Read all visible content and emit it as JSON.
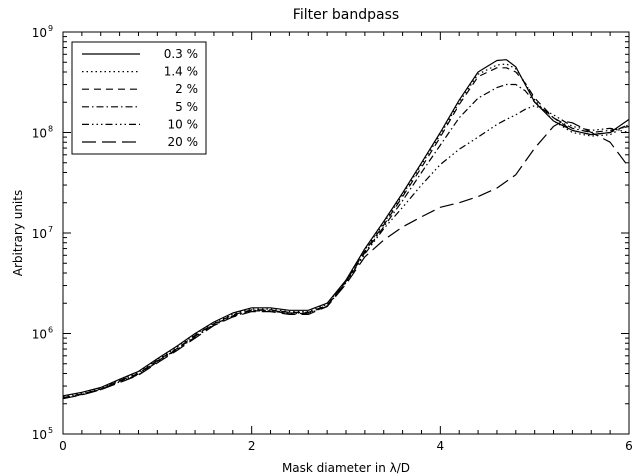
{
  "chart_data": {
    "type": "line",
    "title": "Filter bandpass",
    "xlabel": "Mask diameter in λ/D",
    "ylabel": "Arbitrary units",
    "xlim": [
      0,
      6
    ],
    "ylim": [
      100000,
      1000000000
    ],
    "yscale": "log",
    "grid": false,
    "legend_position": "top-left",
    "x_ticks": [
      0,
      2,
      4,
      6
    ],
    "x_tick_labels": [
      "0",
      "2",
      "4",
      "6"
    ],
    "y_ticks": [
      100000,
      1000000,
      10000000,
      100000000,
      1000000000
    ],
    "y_tick_labels": [
      {
        "base": "10",
        "exp": "5"
      },
      {
        "base": "10",
        "exp": "6"
      },
      {
        "base": "10",
        "exp": "7"
      },
      {
        "base": "10",
        "exp": "8"
      },
      {
        "base": "10",
        "exp": "9"
      }
    ],
    "series": [
      {
        "name": "0.3 %",
        "dash": "",
        "x": [
          0,
          0.2,
          0.4,
          0.6,
          0.8,
          1.0,
          1.2,
          1.4,
          1.6,
          1.8,
          2.0,
          2.2,
          2.4,
          2.6,
          2.8,
          3.0,
          3.2,
          3.4,
          3.6,
          3.8,
          4.0,
          4.2,
          4.4,
          4.6,
          4.7,
          4.8,
          4.9,
          5.0,
          5.2,
          5.4,
          5.6,
          5.8,
          6.0
        ],
        "y": [
          240000,
          260000,
          290000,
          350000,
          420000,
          560000,
          740000,
          1000000,
          1300000,
          1600000,
          1800000,
          1800000,
          1700000,
          1700000,
          2000000,
          3400000,
          7000000,
          13000000,
          25000000,
          50000000,
          100000000,
          210000000,
          400000000,
          520000000,
          530000000,
          450000000,
          300000000,
          200000000,
          130000000,
          105000000,
          95000000,
          100000000,
          135000000
        ]
      },
      {
        "name": "1.4 %",
        "dash": "1.5,3",
        "x": [
          0,
          0.2,
          0.4,
          0.6,
          0.8,
          1.0,
          1.2,
          1.4,
          1.6,
          1.8,
          2.0,
          2.2,
          2.4,
          2.6,
          2.8,
          3.0,
          3.2,
          3.4,
          3.6,
          3.8,
          4.0,
          4.2,
          4.4,
          4.6,
          4.7,
          4.8,
          4.9,
          5.0,
          5.2,
          5.4,
          5.6,
          5.8,
          6.0
        ],
        "y": [
          235000,
          255000,
          285000,
          345000,
          410000,
          550000,
          720000,
          980000,
          1280000,
          1560000,
          1750000,
          1750000,
          1650000,
          1650000,
          1950000,
          3350000,
          6800000,
          12500000,
          24000000,
          48000000,
          95000000,
          200000000,
          380000000,
          470000000,
          480000000,
          430000000,
          310000000,
          210000000,
          130000000,
          100000000,
          92000000,
          95000000,
          120000000
        ]
      },
      {
        "name": "2 %",
        "dash": "7,5",
        "x": [
          0,
          0.2,
          0.4,
          0.6,
          0.8,
          1.0,
          1.2,
          1.4,
          1.6,
          1.8,
          2.0,
          2.2,
          2.4,
          2.6,
          2.8,
          3.0,
          3.2,
          3.4,
          3.6,
          3.8,
          4.0,
          4.2,
          4.4,
          4.6,
          4.7,
          4.8,
          4.9,
          5.0,
          5.2,
          5.4,
          5.6,
          5.8,
          6.0
        ],
        "y": [
          230000,
          250000,
          280000,
          340000,
          400000,
          540000,
          700000,
          960000,
          1250000,
          1530000,
          1720000,
          1720000,
          1620000,
          1620000,
          1900000,
          3300000,
          6600000,
          12000000,
          23000000,
          45000000,
          90000000,
          190000000,
          360000000,
          440000000,
          440000000,
          400000000,
          310000000,
          220000000,
          140000000,
          105000000,
          95000000,
          100000000,
          120000000
        ]
      },
      {
        "name": "5 %",
        "dash": "7,3,1.5,3",
        "x": [
          0,
          0.2,
          0.4,
          0.6,
          0.8,
          1.0,
          1.2,
          1.4,
          1.6,
          1.8,
          2.0,
          2.2,
          2.4,
          2.6,
          2.8,
          3.0,
          3.2,
          3.4,
          3.6,
          3.8,
          4.0,
          4.2,
          4.4,
          4.6,
          4.7,
          4.8,
          4.9,
          5.0,
          5.2,
          5.4,
          5.6,
          5.8,
          6.0
        ],
        "y": [
          228000,
          248000,
          278000,
          335000,
          395000,
          530000,
          690000,
          940000,
          1230000,
          1500000,
          1700000,
          1700000,
          1600000,
          1600000,
          1880000,
          3250000,
          6400000,
          11500000,
          21000000,
          40000000,
          75000000,
          140000000,
          220000000,
          280000000,
          300000000,
          300000000,
          260000000,
          200000000,
          140000000,
          110000000,
          100000000,
          105000000,
          115000000
        ]
      },
      {
        "name": "10 %",
        "dash": "7,3,1.5,3,1.5,3,1.5,3",
        "x": [
          0,
          0.2,
          0.4,
          0.6,
          0.8,
          1.0,
          1.2,
          1.4,
          1.6,
          1.8,
          2.0,
          2.2,
          2.4,
          2.6,
          2.8,
          3.0,
          3.2,
          3.4,
          3.6,
          3.8,
          4.0,
          4.2,
          4.4,
          4.6,
          4.7,
          4.8,
          4.9,
          5.0,
          5.2,
          5.4,
          5.6,
          5.8,
          6.0
        ],
        "y": [
          226000,
          246000,
          276000,
          330000,
          390000,
          520000,
          680000,
          920000,
          1210000,
          1480000,
          1680000,
          1680000,
          1580000,
          1580000,
          1860000,
          3200000,
          6200000,
          11000000,
          18000000,
          30000000,
          48000000,
          68000000,
          90000000,
          120000000,
          135000000,
          150000000,
          170000000,
          185000000,
          150000000,
          115000000,
          105000000,
          110000000,
          100000000
        ]
      },
      {
        "name": "20 %",
        "dash": "14,6",
        "x": [
          0,
          0.2,
          0.4,
          0.6,
          0.8,
          1.0,
          1.2,
          1.4,
          1.6,
          1.8,
          2.0,
          2.2,
          2.4,
          2.6,
          2.8,
          3.0,
          3.2,
          3.4,
          3.6,
          3.8,
          4.0,
          4.2,
          4.4,
          4.6,
          4.8,
          5.0,
          5.2,
          5.3,
          5.4,
          5.6,
          5.8,
          6.0
        ],
        "y": [
          225000,
          245000,
          275000,
          325000,
          385000,
          510000,
          670000,
          900000,
          1200000,
          1460000,
          1650000,
          1650000,
          1550000,
          1550000,
          1850000,
          3100000,
          5800000,
          8500000,
          11500000,
          14500000,
          18000000,
          20000000,
          23000000,
          28000000,
          38000000,
          70000000,
          115000000,
          130000000,
          125000000,
          100000000,
          80000000,
          45000000
        ]
      }
    ]
  }
}
